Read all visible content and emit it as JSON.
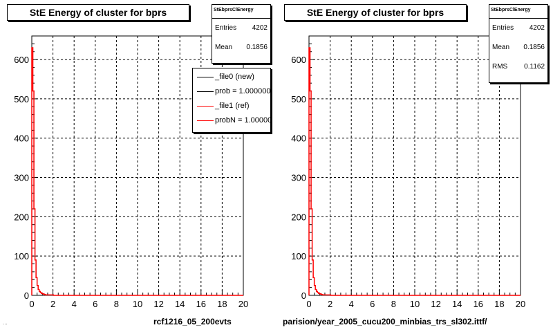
{
  "colors": {
    "new": "#000000",
    "ref": "#ff0000",
    "grid": "#000000",
    "frame": "#000000"
  },
  "left_panel": {
    "title": "StE Energy of cluster for bprs",
    "stats": {
      "name": "StEbprsClEnergy",
      "entries_label": "Entries",
      "entries": "4202",
      "mean_label": "Mean",
      "mean": "0.1856"
    },
    "legend": [
      {
        "label": "_file0 (new)",
        "color_key": "new"
      },
      {
        "label": "prob = 1.000000",
        "color_key": "new"
      },
      {
        "label": "_file1 (ref)",
        "color_key": "ref"
      },
      {
        "label": "probN = 1.000000",
        "color_key": "ref"
      }
    ],
    "footer": "rcf1216_05_200evts",
    "footer_left": "..."
  },
  "right_panel": {
    "title": "StE Energy of cluster for bprs",
    "stats": {
      "name": "StEbprsClEnergy",
      "entries_label": "Entries",
      "entries": "4202",
      "mean_label": "Mean",
      "mean": "0.1856",
      "rms_label": "RMS",
      "rms": "0.1162"
    },
    "footer": "parision/year_2005_cucu200_minbias_trs_sl302.ittf/"
  },
  "chart_data": [
    {
      "type": "line",
      "title": "StE Energy of cluster for bprs",
      "xlim": [
        0,
        20
      ],
      "ylim": [
        0,
        660
      ],
      "xticks": [
        0,
        2,
        4,
        6,
        8,
        10,
        12,
        14,
        16,
        18,
        20
      ],
      "yticks": [
        0,
        100,
        200,
        300,
        400,
        500,
        600
      ],
      "grid": true,
      "series": [
        {
          "name": "_file0 (new)",
          "color": "#000000",
          "x": [
            0.05,
            0.15,
            0.25,
            0.35,
            0.45,
            0.55,
            0.65,
            0.75,
            0.85,
            0.95,
            1.05,
            1.15,
            1.25,
            1.5,
            2.0,
            3.0,
            5.0,
            10.0,
            19.95
          ],
          "y": [
            630,
            520,
            220,
            90,
            45,
            25,
            15,
            10,
            7,
            5,
            4,
            3,
            2,
            1,
            1,
            0,
            0,
            0,
            0
          ]
        },
        {
          "name": "_file1 (ref)",
          "color": "#ff0000",
          "x": [
            0.05,
            0.15,
            0.25,
            0.35,
            0.45,
            0.55,
            0.65,
            0.75,
            0.85,
            0.95,
            1.05,
            1.15,
            1.25,
            1.5,
            2.0,
            3.0,
            5.0,
            10.0,
            19.95
          ],
          "y": [
            630,
            520,
            220,
            90,
            45,
            25,
            15,
            10,
            7,
            5,
            4,
            3,
            2,
            1,
            1,
            0,
            0,
            0,
            0
          ]
        }
      ]
    },
    {
      "type": "line",
      "title": "StE Energy of cluster for bprs",
      "xlim": [
        0,
        20
      ],
      "ylim": [
        0,
        660
      ],
      "xticks": [
        0,
        2,
        4,
        6,
        8,
        10,
        12,
        14,
        16,
        18,
        20
      ],
      "yticks": [
        0,
        100,
        200,
        300,
        400,
        500,
        600
      ],
      "grid": true,
      "series": [
        {
          "name": "",
          "color": "#ff0000",
          "x": [
            0.05,
            0.15,
            0.25,
            0.35,
            0.45,
            0.55,
            0.65,
            0.75,
            0.85,
            0.95,
            1.05,
            1.15,
            1.25,
            1.5,
            2.0,
            3.0,
            5.0,
            10.0,
            19.95
          ],
          "y": [
            630,
            520,
            220,
            90,
            45,
            25,
            15,
            10,
            7,
            5,
            4,
            3,
            2,
            1,
            1,
            0,
            0,
            0,
            0
          ]
        }
      ]
    }
  ]
}
